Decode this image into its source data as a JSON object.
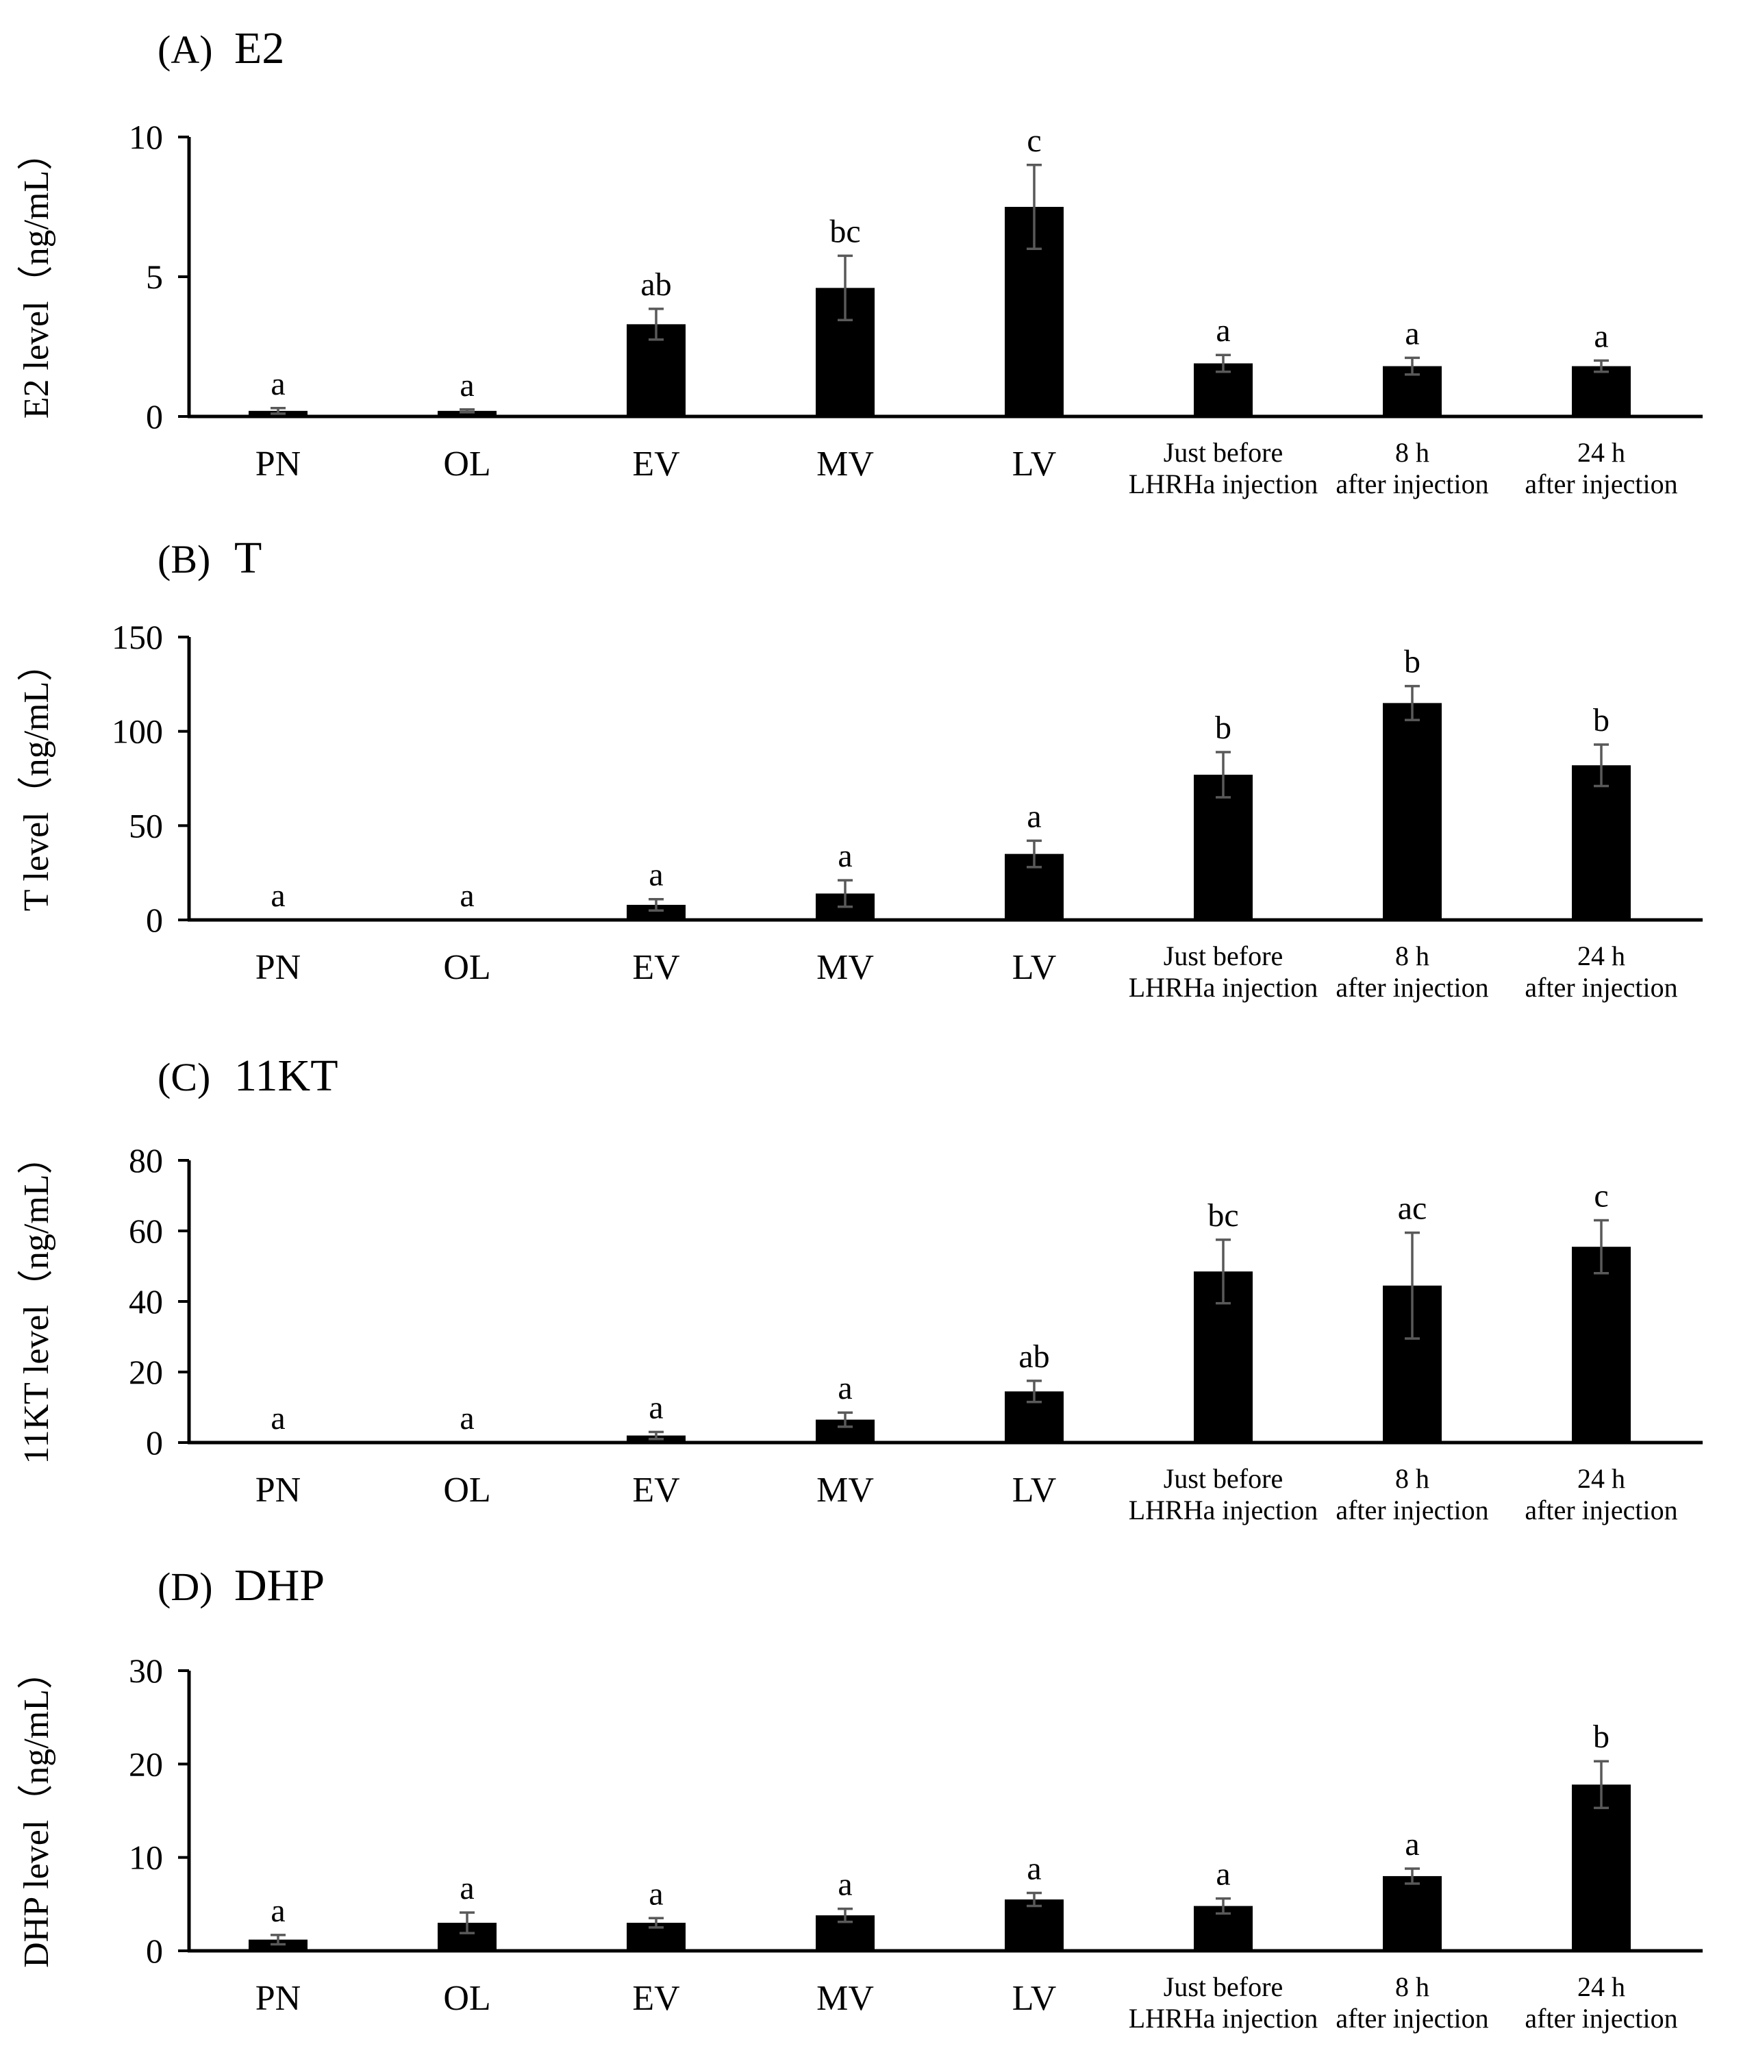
{
  "chart_data": [
    {
      "type": "bar",
      "panel": "(A)",
      "title": "E2",
      "ylabel": "E2 level（ng/mL）",
      "xlabel": "",
      "ylim": [
        0,
        10
      ],
      "yticks": [
        0,
        5,
        10
      ],
      "categories": [
        "PN",
        "OL",
        "EV",
        "MV",
        "LV",
        [
          "Just before",
          "LHRHa injection"
        ],
        [
          "8  h",
          "after injection"
        ],
        [
          "24 h",
          "after injection"
        ]
      ],
      "values": [
        0.2,
        0.2,
        3.3,
        4.6,
        7.5,
        1.9,
        1.8,
        1.8
      ],
      "errors": [
        0.1,
        0.05,
        0.55,
        1.15,
        1.5,
        0.3,
        0.3,
        0.2
      ],
      "significance": [
        "a",
        "a",
        "ab",
        "bc",
        "c",
        "a",
        "a",
        "a"
      ]
    },
    {
      "type": "bar",
      "panel": "(B)",
      "title": "T",
      "ylabel": "T level（ng/mL）",
      "xlabel": "",
      "ylim": [
        0,
        150
      ],
      "yticks": [
        0,
        50,
        100,
        150
      ],
      "categories": [
        "PN",
        "OL",
        "EV",
        "MV",
        "LV",
        [
          "Just before",
          "LHRHa injection"
        ],
        [
          "8  h",
          "after injection"
        ],
        [
          "24 h",
          "after injection"
        ]
      ],
      "values": [
        0,
        0,
        8,
        14,
        35,
        77,
        115,
        82
      ],
      "errors": [
        0,
        0,
        3,
        7,
        7,
        12,
        9,
        11
      ],
      "significance": [
        "a",
        "a",
        "a",
        "a",
        "a",
        "b",
        "b",
        "b"
      ]
    },
    {
      "type": "bar",
      "panel": "(C)",
      "title": "11KT",
      "ylabel": "11KT level（ng/mL）",
      "xlabel": "",
      "ylim": [
        0,
        80
      ],
      "yticks": [
        0,
        20,
        40,
        60,
        80
      ],
      "categories": [
        "PN",
        "OL",
        "EV",
        "MV",
        "LV",
        [
          "Just before",
          "LHRHa injection"
        ],
        [
          "8  h",
          "after injection"
        ],
        [
          "24 h",
          "after injection"
        ]
      ],
      "values": [
        0,
        0,
        2,
        6.5,
        14.5,
        48.5,
        44.5,
        55.5
      ],
      "errors": [
        0,
        0,
        1,
        2,
        3,
        9,
        15,
        7.5
      ],
      "significance": [
        "a",
        "a",
        "a",
        "a",
        "ab",
        "bc",
        "ac",
        "c"
      ]
    },
    {
      "type": "bar",
      "panel": "(D)",
      "title": "DHP",
      "ylabel": "DHP level（ng/mL）",
      "xlabel": "",
      "ylim": [
        0,
        30
      ],
      "yticks": [
        0,
        10,
        20,
        30
      ],
      "categories": [
        "PN",
        "OL",
        "EV",
        "MV",
        "LV",
        [
          "Just before",
          "LHRHa injection"
        ],
        [
          "8  h",
          "after injection"
        ],
        [
          "24 h",
          "after injection"
        ]
      ],
      "values": [
        1.2,
        3.0,
        3.0,
        3.8,
        5.5,
        4.8,
        8.0,
        17.8
      ],
      "errors": [
        0.5,
        1.1,
        0.5,
        0.7,
        0.7,
        0.8,
        0.8,
        2.5
      ],
      "significance": [
        "a",
        "a",
        "a",
        "a",
        "a",
        "a",
        "a",
        "b"
      ]
    }
  ]
}
